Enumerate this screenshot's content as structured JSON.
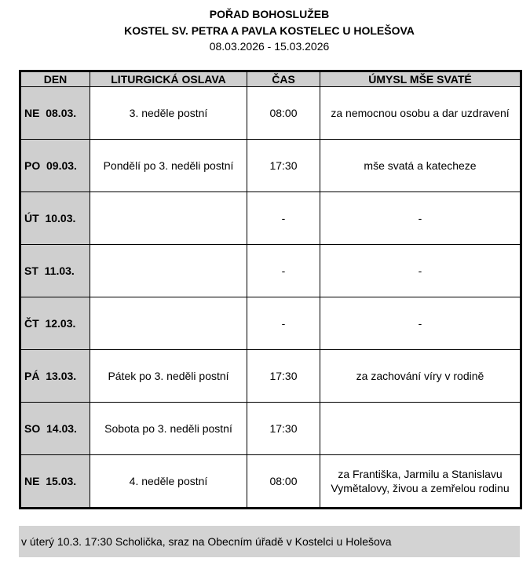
{
  "header": {
    "title": "POŘAD BOHOSLUŽEB",
    "subtitle": "KOSTEL SV. PETRA A PAVLA KOSTELEC U HOLEŠOVA",
    "date_range": "08.03.2026 - 15.03.2026"
  },
  "table": {
    "columns": [
      "DEN",
      "LITURGICKÁ OSLAVA",
      "ČAS",
      "ÚMYSL MŠE SVATÉ"
    ],
    "rows": [
      {
        "day": "NE  08.03.",
        "celebration": "3. neděle postní",
        "time": "08:00",
        "intention": "za nemocnou osobu a dar uzdravení"
      },
      {
        "day": "PO  09.03.",
        "celebration": "Pondělí po 3. neděli postní",
        "time": "17:30",
        "intention": "mše svatá a katecheze"
      },
      {
        "day": "ÚT  10.03.",
        "celebration": "",
        "time": "-",
        "intention": "-"
      },
      {
        "day": "ST  11.03.",
        "celebration": "",
        "time": "-",
        "intention": "-"
      },
      {
        "day": "ČT  12.03.",
        "celebration": "",
        "time": "-",
        "intention": "-"
      },
      {
        "day": "PÁ  13.03.",
        "celebration": "Pátek po 3. neděli postní",
        "time": "17:30",
        "intention": "za zachování víry v rodině"
      },
      {
        "day": "SO  14.03.",
        "celebration": "Sobota po 3. neděli postní",
        "time": "17:30",
        "intention": ""
      },
      {
        "day": "NE  15.03.",
        "celebration": "4. neděle postní",
        "time": "08:00",
        "intention": "za Františka, Jarmilu a Stanislavu Vymětalovy, živou a zemřelou rodinu"
      }
    ]
  },
  "footer": {
    "note": "v úterý 10.3. 17:30 Scholička, sraz na Obecním úřadě v Kostelci u Holešova"
  }
}
